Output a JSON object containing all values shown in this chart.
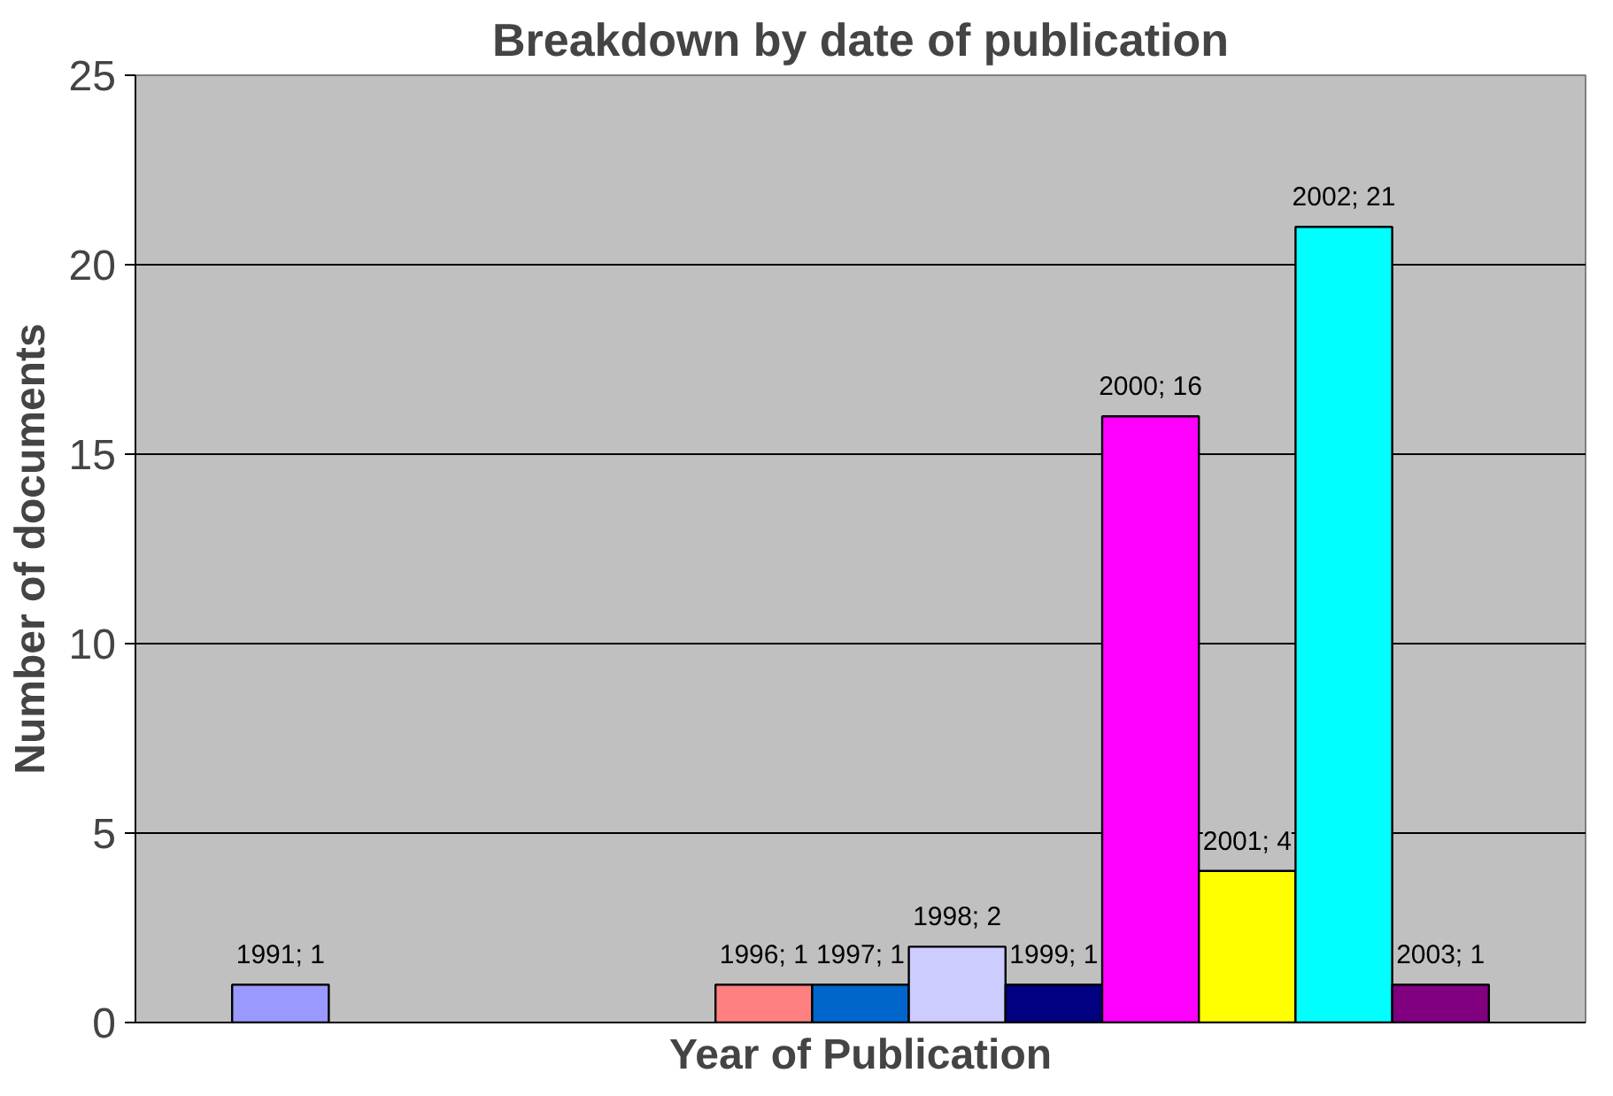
{
  "chart_data": {
    "type": "bar",
    "title": "Breakdown by date of publication",
    "xlabel": "Year of Publication",
    "ylabel": "Number of documents",
    "categories": [
      null,
      null,
      null,
      null,
      null,
      null,
      null,
      null,
      null,
      null,
      null,
      null,
      null,
      null,
      null
    ],
    "values": [
      null,
      1,
      null,
      null,
      null,
      null,
      1,
      1,
      2,
      1,
      16,
      4,
      21,
      1,
      null
    ],
    "colors": [
      "#9999ff",
      "#9999ff",
      "#9999ff",
      "#9999ff",
      "#9999ff",
      "#9999ff",
      "#ff8080",
      "#0066cc",
      "#ccccff",
      "#000080",
      "#ff00ff",
      "#ffff00",
      "#00ffff",
      "#800080",
      "#800080"
    ],
    "value_labels": [
      null,
      "1991; 1",
      null,
      null,
      null,
      null,
      "1996; 1",
      "1997; 1",
      "1998; 2",
      "1999; 1",
      "2000; 16",
      "2001; 4",
      "2002; 21",
      "2003; 1",
      null
    ],
    "ylim": [
      0,
      25
    ],
    "yticks": [
      0,
      5,
      10,
      15,
      20,
      25
    ],
    "grid": "y",
    "tick_labels": "y"
  }
}
